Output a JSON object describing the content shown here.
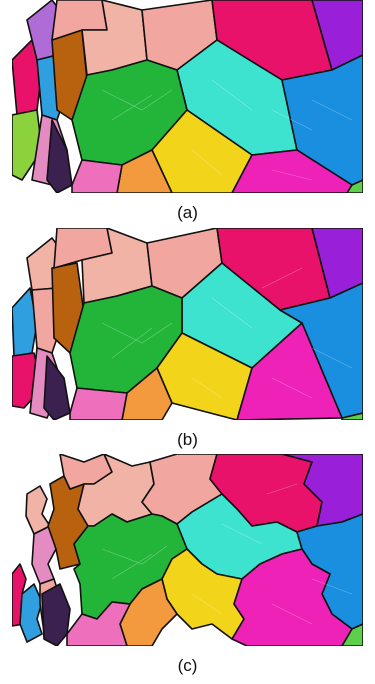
{
  "figure": {
    "panels": [
      {
        "caption": "(a)",
        "variant": "smooth-boundaries"
      },
      {
        "caption": "(b)",
        "variant": "smoothed-boundaries"
      },
      {
        "caption": "(c)",
        "variant": "jagged-boundaries"
      }
    ],
    "colors": {
      "red_pink": "#e8126a",
      "cyan": "#3ee3cf",
      "blue": "#1a8fe0",
      "green": "#22b53a",
      "yellow": "#f2d41a",
      "magenta": "#ee22b6",
      "salmon": "#f2a6a0",
      "orange": "#f39a3e",
      "brown": "#b8620f",
      "purple": "#9a1fd8",
      "dark_purple": "#3b2150"
    }
  }
}
